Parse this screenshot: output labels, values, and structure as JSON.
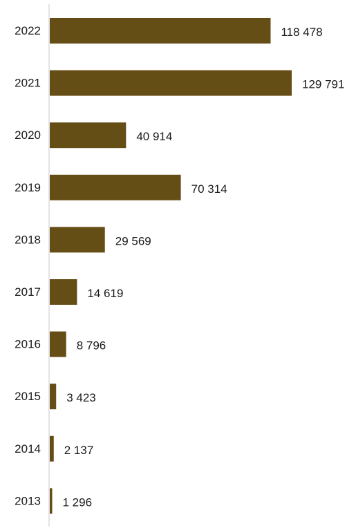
{
  "chart_data": {
    "type": "bar",
    "orientation": "horizontal",
    "categories": [
      "2022",
      "2021",
      "2020",
      "2019",
      "2018",
      "2017",
      "2016",
      "2015",
      "2014",
      "2013"
    ],
    "values": [
      118478,
      129791,
      40914,
      70314,
      29569,
      14619,
      8796,
      3423,
      2137,
      1296
    ],
    "value_labels": [
      "118 478",
      "129 791",
      "40 914",
      "70 314",
      "29 569",
      "14 619",
      "8 796",
      "3 423",
      "2 137",
      "1 296"
    ],
    "title": "",
    "xlabel": "",
    "ylabel": "",
    "xlim": [
      0,
      129791
    ],
    "grid": false,
    "legend": "none",
    "bar_color": "#654d16",
    "axis_color": "#c8c8c8"
  }
}
